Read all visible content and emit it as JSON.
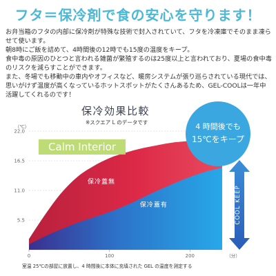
{
  "page": {
    "headline": "フタ＝保冷剤で食の安心を守ります！",
    "paragraphs": [
      "お弁当箱のフタの内部に保冷剤が特殊な技術で封入されていて、フタを冷凍庫でそのまま凍らせて使います。",
      "朝8時にご飯を詰めて、4時間後の12時でも15度の温度をキープ。",
      "食中毒の原因のひとつと言われる雑菌が繁殖するのは25度以上と言われており、夏場の食中毒のリスクを減らすことができます。",
      "また、冬場でも移動中の車内やオフィスなど、暖房システムが張り巡らされている現代では、思いがけず温度が高くなっているホットスポットがたくさんあるため、GEL-COOLは一年中活躍してくれるのです！"
    ],
    "footnote": "室温 25℃の部屋に放置し、4 時間後に本体に充填された GEL の温度を測定する",
    "colors": {
      "headline": "#4bb8d6",
      "brand": "#b9d96a",
      "warm_area": "#d82a48",
      "cool_area": "#2b8ed8",
      "keep_arrow": "#2d6fc4",
      "bubble": "#3aa7e0"
    }
  },
  "chart_data": {
    "type": "area",
    "title": "保冷効果比較",
    "subtitle": "※スクエア L のデータです",
    "brand_label": "Calm Interior",
    "bubble_text": [
      "4 時間後でも",
      "15℃をキープ"
    ],
    "keep_label": "COOL KEEP",
    "xlabel": "（分）",
    "ylabel": "（℃）",
    "x_ticks": [
      0,
      100,
      200
    ],
    "y_ticks": [
      "5.5",
      "11.0",
      "16.5",
      "22.0"
    ],
    "xlim": [
      0,
      240
    ],
    "ylim": [
      0,
      22
    ],
    "series": [
      {
        "name": "保冷蓋無",
        "x": [
          0,
          20,
          40,
          60,
          80,
          100,
          120,
          140,
          160,
          180,
          200,
          220,
          240
        ],
        "values": [
          2.0,
          6.5,
          10.5,
          13.5,
          15.5,
          17.0,
          18.0,
          18.8,
          19.4,
          19.9,
          20.2,
          20.5,
          20.7
        ]
      },
      {
        "name": "保冷蓋有",
        "x": [
          0,
          20,
          40,
          60,
          80,
          100,
          120,
          140,
          160,
          180,
          200,
          220,
          240
        ],
        "values": [
          1.0,
          2.5,
          3.8,
          5.0,
          6.0,
          7.0,
          8.2,
          9.6,
          11.0,
          12.3,
          13.5,
          14.5,
          15.2
        ]
      }
    ]
  }
}
